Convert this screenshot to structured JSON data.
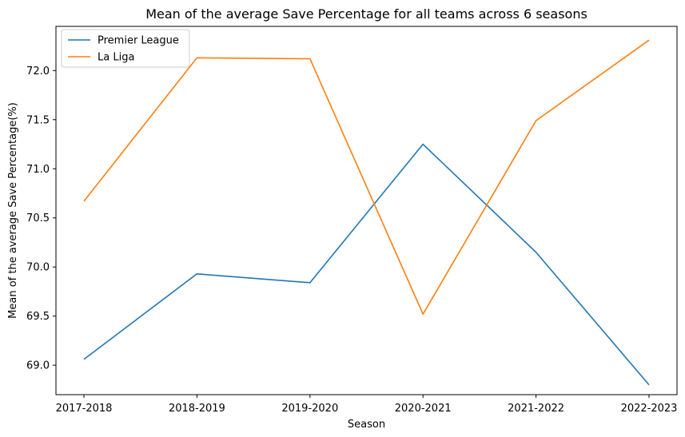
{
  "chart_data": {
    "type": "line",
    "title": "Mean of the average Save Percentage for all teams across 6 seasons",
    "xlabel": "Season",
    "ylabel": "Mean of the average Save Percentage(%)",
    "categories": [
      "2017-2018",
      "2018-2019",
      "2019-2020",
      "2020-2021",
      "2021-2022",
      "2022-2023"
    ],
    "ylim": [
      68.7,
      72.45
    ],
    "yticks": [
      "69.0",
      "69.5",
      "70.0",
      "70.5",
      "71.0",
      "71.5",
      "72.0"
    ],
    "ytick_values": [
      69.0,
      69.5,
      70.0,
      70.5,
      71.0,
      71.5,
      72.0
    ],
    "grid": false,
    "legend_position": "top-left",
    "series": [
      {
        "name": "Premier League",
        "color": "#1f77b4",
        "values": [
          69.06,
          69.93,
          69.84,
          71.25,
          70.15,
          68.8
        ]
      },
      {
        "name": "La Liga",
        "color": "#ff7f0e",
        "values": [
          70.67,
          72.13,
          72.12,
          69.52,
          71.49,
          72.31
        ]
      }
    ]
  }
}
